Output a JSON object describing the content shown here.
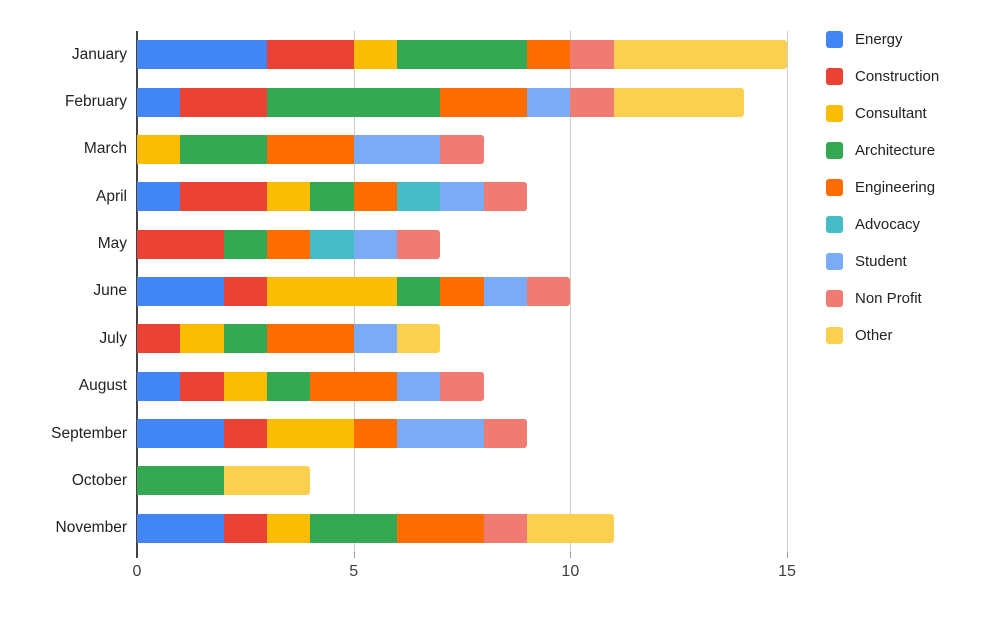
{
  "chart_data": {
    "type": "bar",
    "orientation": "horizontal-stacked",
    "title": "",
    "xlabel": "",
    "ylabel": "",
    "grid": true,
    "legend_position": "right",
    "xlim": [
      0,
      15.25
    ],
    "x_ticks": [
      0,
      5,
      10,
      15
    ],
    "categories": [
      "January",
      "February",
      "March",
      "April",
      "May",
      "June",
      "July",
      "August",
      "September",
      "October",
      "November"
    ],
    "series": [
      {
        "name": "Energy",
        "color": "#4285F4",
        "values": [
          3,
          1,
          0,
          1,
          0,
          2,
          0,
          1,
          2,
          0,
          2
        ]
      },
      {
        "name": "Construction",
        "color": "#EA4335",
        "values": [
          2,
          2,
          0,
          2,
          2,
          1,
          1,
          1,
          1,
          0,
          1
        ]
      },
      {
        "name": "Consultant",
        "color": "#FBBC04",
        "values": [
          1,
          0,
          1,
          1,
          0,
          3,
          1,
          1,
          2,
          0,
          1
        ]
      },
      {
        "name": "Architecture",
        "color": "#34A853",
        "values": [
          3,
          4,
          2,
          1,
          1,
          1,
          1,
          1,
          0,
          2,
          2
        ]
      },
      {
        "name": "Engineering",
        "color": "#FF6D01",
        "values": [
          1,
          2,
          2,
          1,
          1,
          1,
          2,
          2,
          1,
          0,
          2
        ]
      },
      {
        "name": "Advocacy",
        "color": "#46BDC6",
        "values": [
          0,
          0,
          0,
          1,
          1,
          0,
          0,
          0,
          0,
          0,
          0
        ]
      },
      {
        "name": "Student",
        "color": "#7BAAF7",
        "values": [
          0,
          1,
          2,
          1,
          1,
          1,
          1,
          1,
          2,
          0,
          0
        ]
      },
      {
        "name": "Non Profit",
        "color": "#F07B72",
        "values": [
          1,
          1,
          1,
          1,
          1,
          1,
          0,
          1,
          1,
          0,
          1
        ]
      },
      {
        "name": "Other",
        "color": "#FCD04F",
        "values": [
          4,
          3,
          0,
          0,
          0,
          0,
          1,
          0,
          0,
          2,
          2
        ]
      }
    ],
    "totals": [
      15,
      14,
      8,
      9,
      7,
      10,
      7,
      8,
      9,
      4,
      11
    ],
    "colors": {
      "axis_line": "#424242",
      "gridline": "#cccccc",
      "tick": "#9e9e9e",
      "label_text": "#222222",
      "tick_text": "#3c4043",
      "background": "#ffffff"
    }
  }
}
